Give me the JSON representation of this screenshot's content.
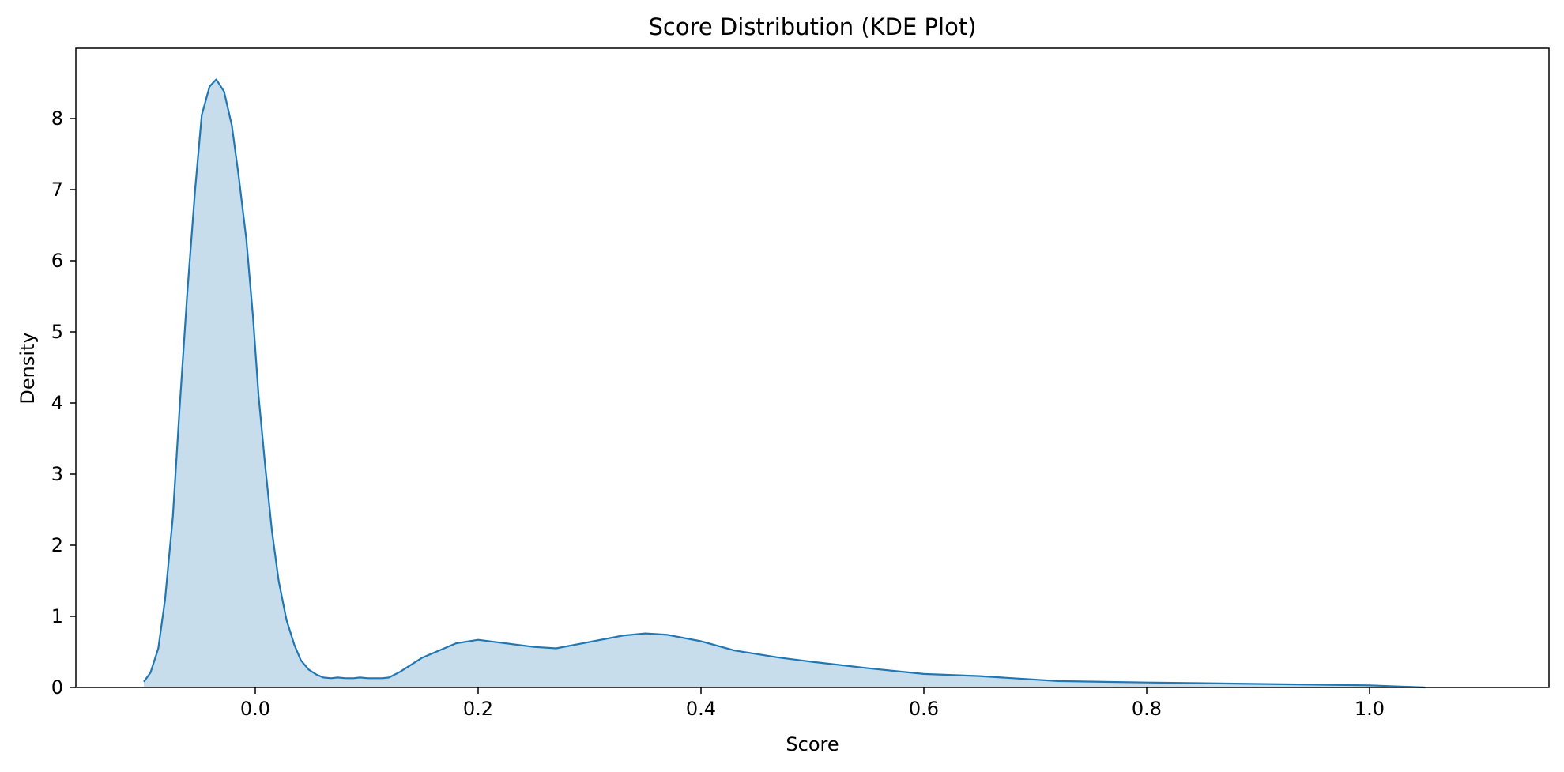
{
  "chart_data": {
    "type": "area",
    "title": "Score Distribution (KDE Plot)",
    "xlabel": "Score",
    "ylabel": "Density",
    "xlim": [
      -0.16,
      1.16
    ],
    "ylim": [
      0,
      9.0
    ],
    "xticks": [
      0.0,
      0.2,
      0.4,
      0.6,
      0.8,
      1.0
    ],
    "xtick_labels": [
      "0.0",
      "0.2",
      "0.4",
      "0.6",
      "0.8",
      "1.0"
    ],
    "yticks": [
      0,
      1,
      2,
      3,
      4,
      5,
      6,
      7,
      8
    ],
    "ytick_labels": [
      "0",
      "1",
      "2",
      "3",
      "4",
      "5",
      "6",
      "7",
      "8"
    ],
    "grid": false,
    "legend": "none",
    "colors": {
      "line": "#1f77b4",
      "fill": "#1f77b4",
      "fill_opacity": 0.25
    },
    "series": [
      {
        "x": [
          -0.1,
          -0.094,
          -0.087,
          -0.081,
          -0.074,
          -0.068,
          -0.061,
          -0.054,
          -0.048,
          -0.041,
          -0.035,
          -0.028,
          -0.021,
          -0.015,
          -0.008,
          -0.002,
          0.003,
          0.009,
          0.015,
          0.021,
          0.028,
          0.035,
          0.041,
          0.048,
          0.055,
          0.061,
          0.068,
          0.074,
          0.081,
          0.088,
          0.094,
          0.101,
          0.107,
          0.114,
          0.12,
          0.13,
          0.15,
          0.18,
          0.2,
          0.22,
          0.25,
          0.27,
          0.3,
          0.33,
          0.35,
          0.37,
          0.4,
          0.43,
          0.47,
          0.5,
          0.55,
          0.6,
          0.65,
          0.68,
          0.72,
          0.8,
          0.9,
          1.0,
          1.05
        ],
        "y": [
          0.08,
          0.21,
          0.55,
          1.23,
          2.4,
          3.9,
          5.55,
          7.0,
          8.05,
          8.45,
          8.55,
          8.38,
          7.9,
          7.2,
          6.3,
          5.2,
          4.1,
          3.1,
          2.2,
          1.5,
          0.95,
          0.6,
          0.38,
          0.25,
          0.18,
          0.14,
          0.13,
          0.14,
          0.13,
          0.13,
          0.14,
          0.13,
          0.13,
          0.13,
          0.14,
          0.22,
          0.42,
          0.62,
          0.67,
          0.63,
          0.57,
          0.55,
          0.64,
          0.73,
          0.76,
          0.74,
          0.65,
          0.52,
          0.42,
          0.36,
          0.27,
          0.19,
          0.16,
          0.13,
          0.09,
          0.07,
          0.05,
          0.03,
          0.0
        ]
      }
    ]
  }
}
